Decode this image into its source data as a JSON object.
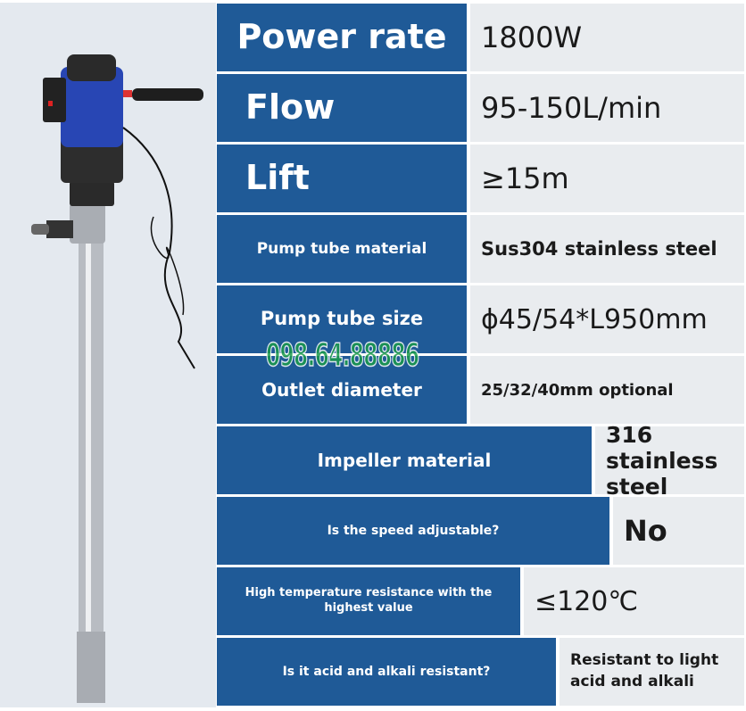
{
  "specs": [
    {
      "label": "Power rate",
      "value": "1800W"
    },
    {
      "label": "Flow",
      "value": "95-150L/min"
    },
    {
      "label": "Lift",
      "value": "≥15m"
    },
    {
      "label": "Pump tube material",
      "value": "Sus304 stainless steel"
    },
    {
      "label": "Pump tube size",
      "value": "ϕ45/54*L950mm"
    },
    {
      "label": "Outlet diameter",
      "value": "25/32/40mm optional"
    },
    {
      "label": "Impeller material",
      "value": "316 stainless steel"
    },
    {
      "label": "Is the speed adjustable?",
      "value": "No"
    },
    {
      "label": "High temperature resistance with the highest value",
      "value": "≤120℃"
    },
    {
      "label": "Is it acid and alkali resistant?",
      "value": "Resistant to light acid and alkali"
    }
  ],
  "watermark": "098.64.88886",
  "colors": {
    "header_blue": "#1f5a97",
    "value_bg": "#e9ecef",
    "watermark_green": "#1a9a4a",
    "pump_blue": "#2846b4"
  }
}
